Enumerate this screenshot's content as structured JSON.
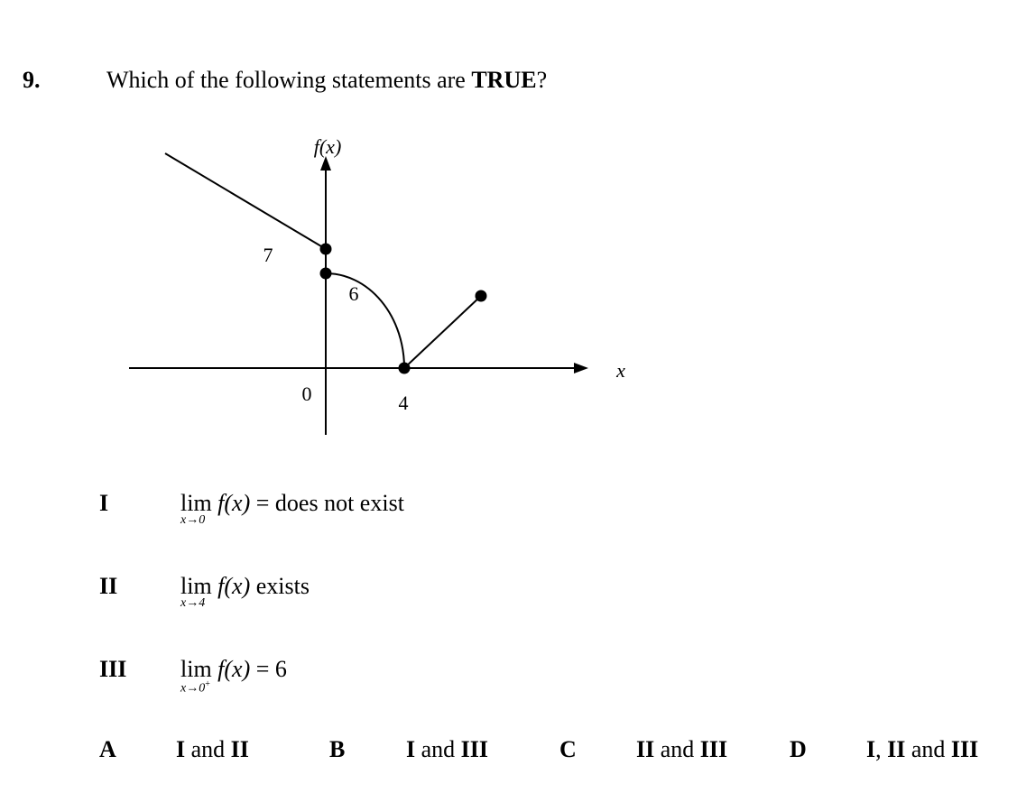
{
  "question": {
    "number": "9.",
    "text_before": "Which of the following statements are ",
    "emphasis": "TRUE",
    "text_after": "?"
  },
  "graph": {
    "y_axis_label": "f(x)",
    "x_axis_label": "x",
    "label_7": "7",
    "label_6": "6",
    "label_0": "0",
    "label_4": "4"
  },
  "statements": [
    {
      "numeral": "I",
      "lim": "lim",
      "sub": "x→0",
      "sup": "",
      "expr": "f(x)",
      "rest": "= does not exist"
    },
    {
      "numeral": "II",
      "lim": "lim",
      "sub": "x→4",
      "sup": "",
      "expr": "f(x)",
      "rest": "exists"
    },
    {
      "numeral": "III",
      "lim": "lim",
      "sub": "x→0",
      "sup": "+",
      "expr": "f(x)",
      "rest": "= 6"
    }
  ],
  "options": [
    {
      "letter": "A",
      "text": "I and II"
    },
    {
      "letter": "B",
      "text": "I and III"
    },
    {
      "letter": "C",
      "text": "II and III"
    },
    {
      "letter": "D",
      "text": "I, II and III"
    }
  ]
}
